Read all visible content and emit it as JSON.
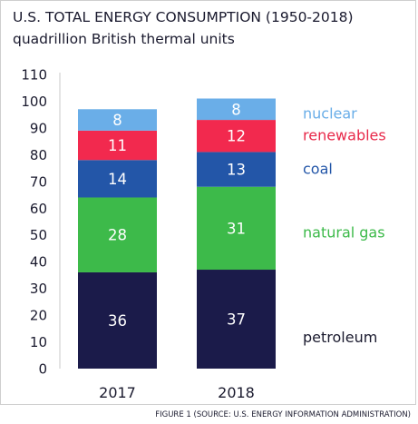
{
  "chart_data": {
    "type": "bar",
    "stacked": true,
    "title": "U.S. TOTAL ENERGY CONSUMPTION (1950-2018)",
    "subtitle": "quadrillion British thermal units",
    "categories": [
      "2017",
      "2018"
    ],
    "ylim": [
      0,
      110
    ],
    "yticks": [
      "0",
      "10",
      "20",
      "30",
      "40",
      "50",
      "60",
      "70",
      "80",
      "90",
      "100",
      "110"
    ],
    "grid": false,
    "legend_placement": "right",
    "series": [
      {
        "name": "petroleum",
        "values": [
          36,
          37
        ],
        "color": "#1b1b4a",
        "label_color": "#1a1a2e"
      },
      {
        "name": "natural gas",
        "values": [
          28,
          31
        ],
        "color": "#3dba4a",
        "label_color": "#3dba4a"
      },
      {
        "name": "coal",
        "values": [
          14,
          13
        ],
        "color": "#2356a8",
        "label_color": "#2356a8"
      },
      {
        "name": "renewables",
        "values": [
          11,
          12
        ],
        "color": "#f2294e",
        "label_color": "#e8294a"
      },
      {
        "name": "nuclear",
        "values": [
          8,
          8
        ],
        "color": "#6aaee8",
        "label_color": "#6aaee8"
      }
    ]
  },
  "footer": "FIGURE 1 (SOURCE: U.S. ENERGY INFORMATION ADMINISTRATION)"
}
